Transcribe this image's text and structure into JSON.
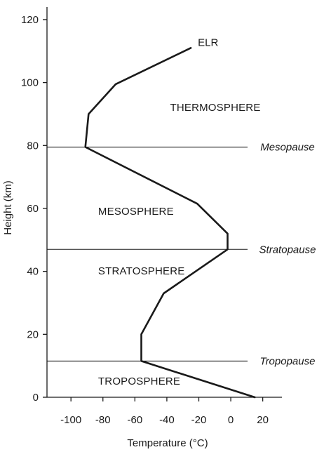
{
  "chart_data": {
    "type": "line",
    "title": "",
    "xlabel": "Temperature (°C)",
    "ylabel": "Height  (km)",
    "xlim": [
      -115,
      32
    ],
    "ylim": [
      0,
      124
    ],
    "x_ticks": [
      -100,
      -80,
      -60,
      -40,
      -20,
      0,
      20
    ],
    "x_tick_labels": [
      "-100",
      "-80",
      "-60",
      "-40",
      "-20",
      "0",
      "20"
    ],
    "y_ticks": [
      0,
      20,
      40,
      60,
      80,
      100,
      120
    ],
    "y_tick_labels": [
      "0",
      "20",
      "40",
      "60",
      "80",
      "100",
      "120"
    ],
    "grid": false,
    "series": [
      {
        "name": "ELR",
        "x": [
          15,
          -56,
          -56,
          -42,
          -2,
          -2,
          -21,
          -91,
          -89,
          -72,
          -25
        ],
        "y": [
          0,
          11.5,
          20,
          33,
          47,
          52,
          61.5,
          79.5,
          90,
          99.5,
          111
        ]
      }
    ],
    "boundaries": [
      {
        "label": "Mesopause",
        "height": 79.5
      },
      {
        "label": "Stratopause",
        "height": 47
      },
      {
        "label": "Tropopause",
        "height": 11.5
      }
    ],
    "regions": [
      {
        "label": "THERMOSPHERE",
        "x": -38,
        "y": 91
      },
      {
        "label": "MESOSPHERE",
        "x": -83,
        "y": 58
      },
      {
        "label": "STRATOSPHERE",
        "x": -83,
        "y": 39
      },
      {
        "label": "TROPOSPHERE",
        "x": -83,
        "y": 4
      }
    ],
    "line_color": "#1a1a1a",
    "axis_color": "#1a1a1a"
  }
}
